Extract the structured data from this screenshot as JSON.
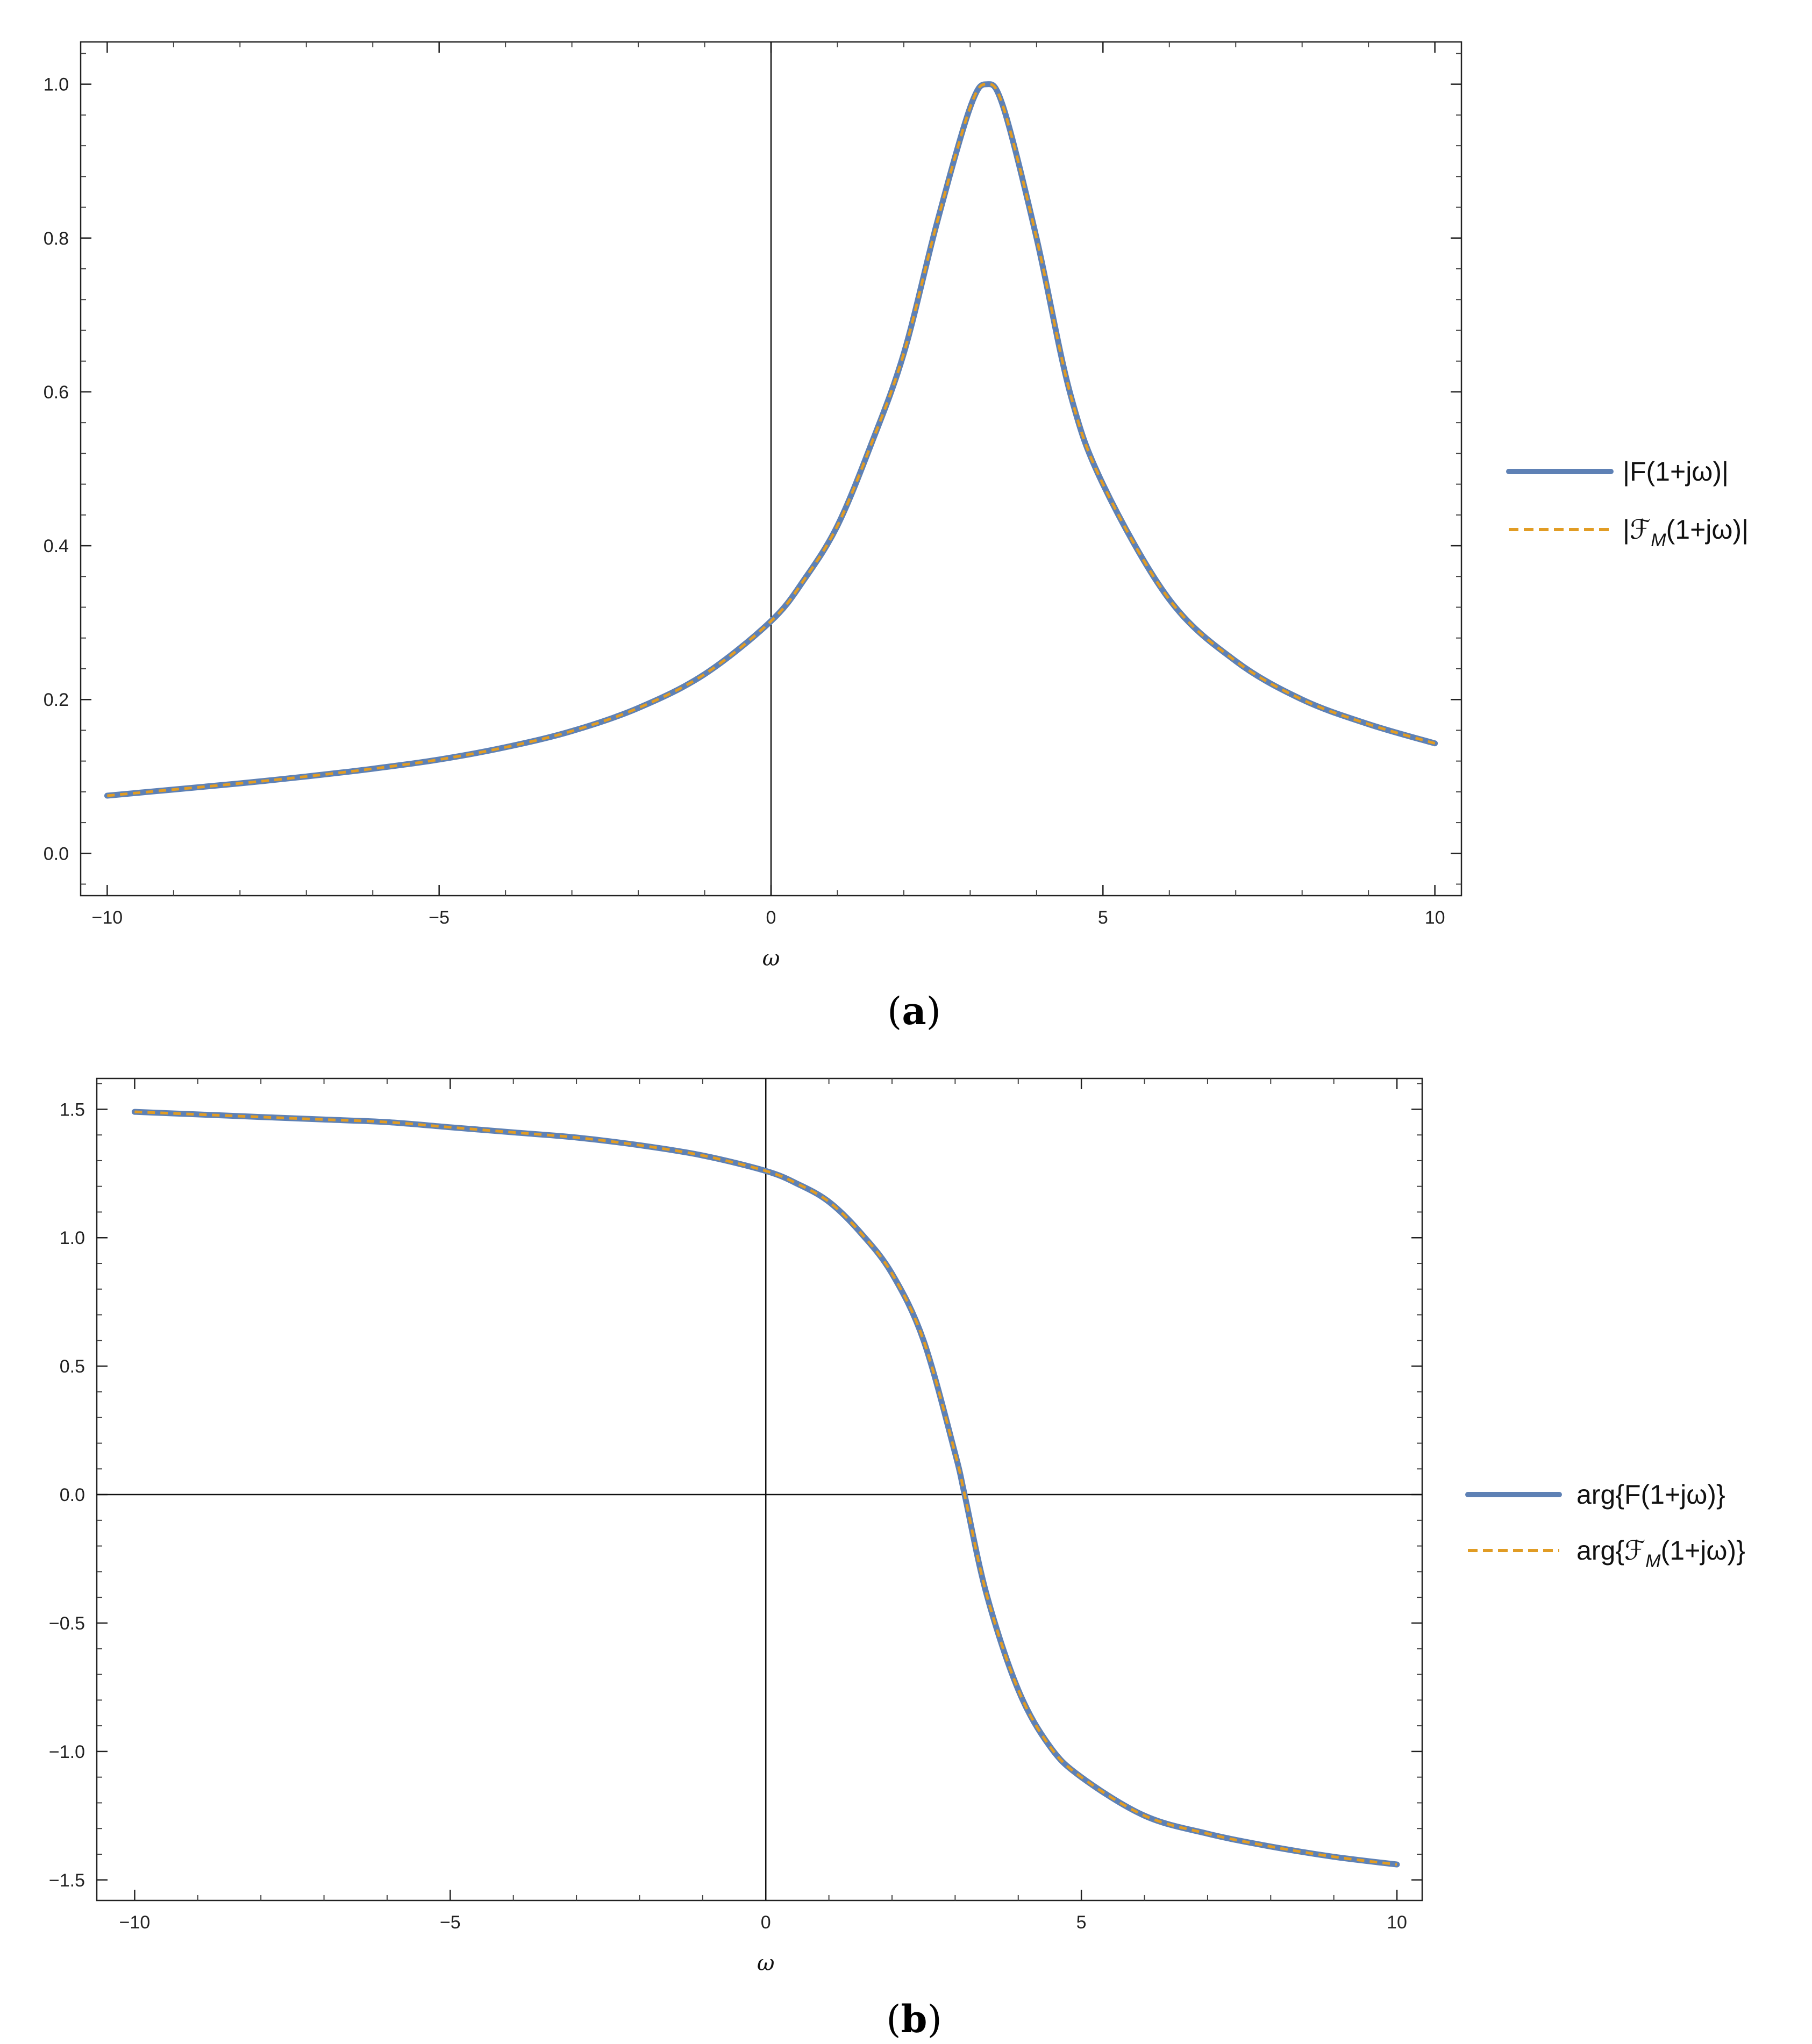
{
  "panels": [
    {
      "caption": "(a)",
      "label_text": "a"
    },
    {
      "caption": "(b)",
      "label_text": "b"
    }
  ],
  "chart_data": [
    {
      "type": "line",
      "panel": "a",
      "title": "",
      "xlabel": "ω",
      "ylabel": "",
      "xlim": [
        -10.4,
        10.4
      ],
      "ylim": [
        -0.055,
        1.055
      ],
      "x_ticks": [
        -10,
        -5,
        0,
        5,
        10
      ],
      "x_tick_labels": [
        "−10",
        "−5",
        "0",
        "5",
        "10"
      ],
      "y_ticks": [
        0.0,
        0.2,
        0.4,
        0.6,
        0.8,
        1.0
      ],
      "y_tick_labels": [
        "0.0",
        "0.2",
        "0.4",
        "0.6",
        "0.8",
        "1.0"
      ],
      "grid": false,
      "axes_lines": {
        "x_zero": false,
        "y_zero": true
      },
      "legend_position": "right",
      "series": [
        {
          "name": "|F(1+jω)|",
          "color": "#5e81b5",
          "style": "solid",
          "x": [
            -10,
            -9,
            -8,
            -7,
            -6,
            -5,
            -4,
            -3,
            -2,
            -1,
            0,
            0.5,
            1,
            1.5,
            2,
            2.5,
            3,
            3.25,
            3.5,
            4,
            4.5,
            5,
            6,
            7,
            8,
            9,
            10
          ],
          "y": [
            0.075,
            0.083,
            0.091,
            0.1,
            0.11,
            0.122,
            0.138,
            0.159,
            0.189,
            0.233,
            0.302,
            0.356,
            0.426,
            0.53,
            0.65,
            0.82,
            0.97,
            1.0,
            0.97,
            0.8,
            0.6,
            0.48,
            0.33,
            0.25,
            0.2,
            0.168,
            0.143
          ]
        },
        {
          "name": "|ℱM(1+jω)|",
          "name_main": "|ℱ",
          "name_sub": "M",
          "name_tail": "(1+jω)|",
          "color": "#e19c24",
          "style": "dashed",
          "same_as_series": 0
        }
      ]
    },
    {
      "type": "line",
      "panel": "b",
      "title": "",
      "xlabel": "ω",
      "ylabel": "",
      "xlim": [
        -10.6,
        10.4
      ],
      "ylim": [
        -1.58,
        1.62
      ],
      "x_ticks": [
        -10,
        -5,
        0,
        5,
        10
      ],
      "x_tick_labels": [
        "−10",
        "−5",
        "0",
        "5",
        "10"
      ],
      "y_ticks": [
        -1.5,
        -1.0,
        -0.5,
        0.0,
        0.5,
        1.0,
        1.5
      ],
      "y_tick_labels": [
        "−1.5",
        "−1.0",
        "−0.5",
        "0.0",
        "0.5",
        "1.0",
        "1.5"
      ],
      "grid": false,
      "axes_lines": {
        "x_zero": true,
        "y_zero": true
      },
      "legend_position": "right",
      "series": [
        {
          "name": "arg{F(1+jω)}",
          "color": "#5e81b5",
          "style": "solid",
          "x": [
            -10,
            -9,
            -8,
            -7,
            -6,
            -5,
            -4,
            -3,
            -2,
            -1,
            0,
            0.5,
            1,
            1.5,
            2,
            2.5,
            3,
            3.15,
            3.5,
            4,
            4.5,
            5,
            6,
            7,
            8,
            9,
            10
          ],
          "y": [
            1.49,
            1.48,
            1.47,
            1.46,
            1.45,
            1.43,
            1.41,
            1.39,
            1.36,
            1.32,
            1.26,
            1.21,
            1.14,
            1.02,
            0.86,
            0.6,
            0.16,
            0.0,
            -0.39,
            -0.76,
            -0.98,
            -1.1,
            -1.25,
            -1.32,
            -1.37,
            -1.41,
            -1.44
          ]
        },
        {
          "name": "arg{ℱM(1+jω)}",
          "name_main": "arg{ℱ",
          "name_sub": "M",
          "name_tail": "(1+jω)}",
          "color": "#e19c24",
          "style": "dashed",
          "same_as_series": 0
        }
      ]
    }
  ]
}
